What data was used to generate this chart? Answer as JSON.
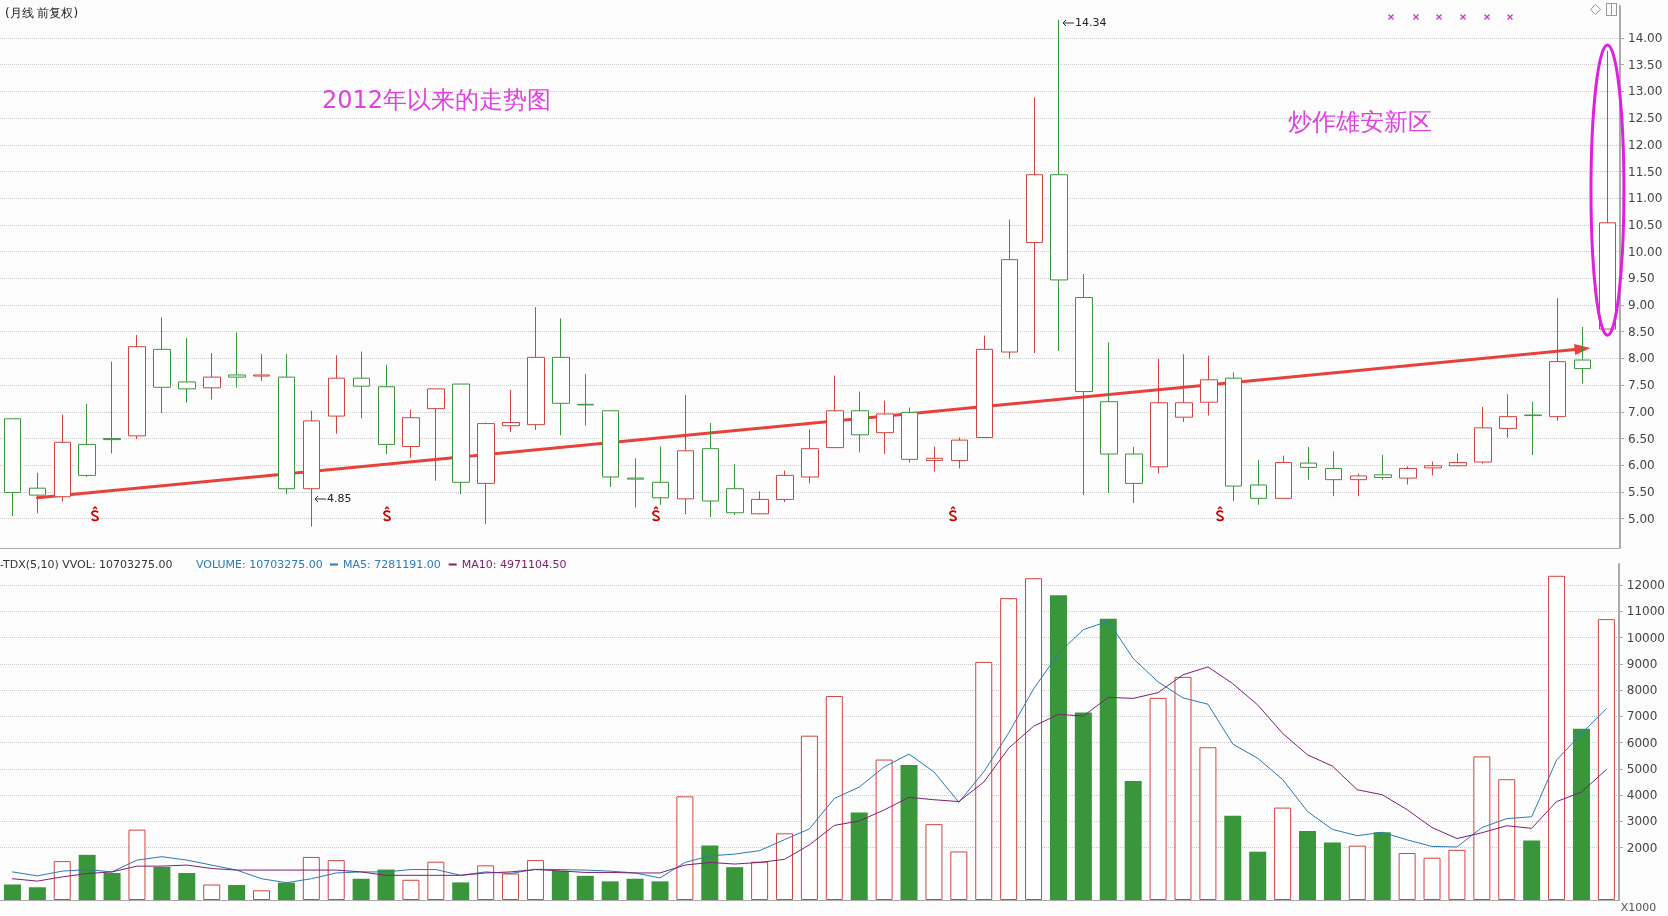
{
  "chart_data": [
    {
      "type": "candlestick",
      "title": "(月线 前复权)",
      "categories": [
        null,
        null,
        null,
        null,
        null,
        null,
        null,
        null,
        null,
        null,
        null,
        null,
        null,
        null,
        null,
        null,
        null,
        null,
        null,
        null,
        null,
        null,
        null,
        null,
        null,
        null,
        null,
        null,
        null,
        null,
        null,
        null,
        null,
        null,
        null,
        null,
        null,
        null,
        null,
        null,
        null,
        null,
        null,
        null,
        null,
        null,
        null,
        null,
        null,
        null,
        null,
        null,
        null,
        null,
        null,
        null,
        null,
        null,
        null,
        null,
        null,
        null,
        null,
        null,
        null
      ],
      "ohlc": [
        [
          6.87,
          6.87,
          5.05,
          5.49
        ],
        [
          5.57,
          5.86,
          5.1,
          5.44
        ],
        [
          5.41,
          6.95,
          5.32,
          6.43
        ],
        [
          6.39,
          7.15,
          5.78,
          5.81
        ],
        [
          6.5,
          7.94,
          6.22,
          6.48
        ],
        [
          6.55,
          8.44,
          6.49,
          8.22
        ],
        [
          8.17,
          8.77,
          6.98,
          7.46
        ],
        [
          7.56,
          8.38,
          7.17,
          7.43
        ],
        [
          7.45,
          8.1,
          7.23,
          7.65
        ],
        [
          7.69,
          8.49,
          7.45,
          7.65
        ],
        [
          7.67,
          8.08,
          7.58,
          7.69
        ],
        [
          7.65,
          8.08,
          5.46,
          5.56
        ],
        [
          5.56,
          7.02,
          4.85,
          6.83
        ],
        [
          6.92,
          8.06,
          6.59,
          7.63
        ],
        [
          7.63,
          8.13,
          6.88,
          7.48
        ],
        [
          7.47,
          7.88,
          6.21,
          6.39
        ],
        [
          6.35,
          7.04,
          6.14,
          6.89
        ],
        [
          7.06,
          7.43,
          5.71,
          7.43
        ],
        [
          7.52,
          7.52,
          5.46,
          5.68
        ],
        [
          5.66,
          6.8,
          4.9,
          6.78
        ],
        [
          6.74,
          7.41,
          6.62,
          6.8
        ],
        [
          6.76,
          8.96,
          6.66,
          8.02
        ],
        [
          8.02,
          8.75,
          6.56,
          7.16
        ],
        [
          7.14,
          7.71,
          6.74,
          7.13
        ],
        [
          7.02,
          7.02,
          5.59,
          5.78
        ],
        [
          5.76,
          6.13,
          5.21,
          5.74
        ],
        [
          5.68,
          6.35,
          5.26,
          5.39
        ],
        [
          5.37,
          7.32,
          5.08,
          6.27
        ],
        [
          6.31,
          6.79,
          5.03,
          5.33
        ],
        [
          5.56,
          6.02,
          5.07,
          5.11
        ],
        [
          5.09,
          5.51,
          5.08,
          5.36
        ],
        [
          5.36,
          5.9,
          5.31,
          5.81
        ],
        [
          5.78,
          6.67,
          5.66,
          6.31
        ],
        [
          6.33,
          7.68,
          6.32,
          7.02
        ],
        [
          7.02,
          7.38,
          6.24,
          6.57
        ],
        [
          6.61,
          7.21,
          6.21,
          6.96
        ],
        [
          6.99,
          7.08,
          6.05,
          6.11
        ],
        [
          6.09,
          6.35,
          5.88,
          6.13
        ],
        [
          6.09,
          6.52,
          5.94,
          6.47
        ],
        [
          6.52,
          8.43,
          6.51,
          8.17
        ],
        [
          8.12,
          10.6,
          8.0,
          9.85
        ],
        [
          10.17,
          12.89,
          8.1,
          11.44
        ],
        [
          11.44,
          14.34,
          8.14,
          9.47
        ],
        [
          9.14,
          9.58,
          5.44,
          7.38
        ],
        [
          7.19,
          8.3,
          5.48,
          6.21
        ],
        [
          6.21,
          6.34,
          5.29,
          5.66
        ],
        [
          5.97,
          7.99,
          5.85,
          7.17
        ],
        [
          6.9,
          8.08,
          6.81,
          7.17
        ],
        [
          7.18,
          8.05,
          6.93,
          7.6
        ],
        [
          7.63,
          7.74,
          5.33,
          5.61
        ],
        [
          5.63,
          6.1,
          5.26,
          5.38
        ],
        [
          5.38,
          6.18,
          5.38,
          6.05
        ],
        [
          6.04,
          6.34,
          5.73,
          5.96
        ],
        [
          5.94,
          6.26,
          5.42,
          5.73
        ],
        [
          5.73,
          5.84,
          5.42,
          5.8
        ],
        [
          5.82,
          6.19,
          5.73,
          5.77
        ],
        [
          5.76,
          5.98,
          5.64,
          5.94
        ],
        [
          5.95,
          6.07,
          5.81,
          5.99
        ],
        [
          5.99,
          6.22,
          5.98,
          6.05
        ],
        [
          6.06,
          7.09,
          6.03,
          6.7
        ],
        [
          6.69,
          7.33,
          6.51,
          6.91
        ],
        [
          6.94,
          7.19,
          6.19,
          6.93
        ],
        [
          6.91,
          9.13,
          6.83,
          7.94
        ],
        [
          7.97,
          8.59,
          7.53,
          7.81
        ],
        [
          8.55,
          13.76,
          8.55,
          10.54
        ]
      ],
      "colors": [
        "#3a963a",
        "#3a963a",
        "#d2453f",
        "#3a963a",
        "#3a963a",
        "#d2453f",
        "#3a963a",
        "#3a963a",
        "#d2453f",
        "#3a963a",
        "#d2453f",
        "#3a963a",
        "#d2453f",
        "#d2453f",
        "#3a963a",
        "#3a963a",
        "#d2453f",
        "#d2453f",
        "#3a963a",
        "#d2453f",
        "#d2453f",
        "#d2453f",
        "#3a963a",
        "#3a963a",
        "#3a963a",
        "#3a963a",
        "#3a963a",
        "#d2453f",
        "#3a963a",
        "#3a963a",
        "#d2453f",
        "#d2453f",
        "#d2453f",
        "#d2453f",
        "#3a963a",
        "#d2453f",
        "#3a963a",
        "#d2453f",
        "#d2453f",
        "#d2453f",
        "#d2453f",
        "#d2453f",
        "#3a963a",
        "#3a963a",
        "#3a963a",
        "#3a963a",
        "#d2453f",
        "#d2453f",
        "#d2453f",
        "#3a963a",
        "#3a963a",
        "#d2453f",
        "#3a963a",
        "#3a963a",
        "#d2453f",
        "#3a963a",
        "#d2453f",
        "#d2453f",
        "#d2453f",
        "#d2453f",
        "#d2453f",
        "#3a963a",
        "#d2453f",
        "#3a963a",
        "#d2453f"
      ],
      "series": [
        {
          "type": "line",
          "color": "#e8413c",
          "values": [
            null,
            5.39,
            null,
            null,
            null,
            null,
            null,
            null,
            null,
            null,
            null,
            null,
            null,
            null,
            null,
            null,
            null,
            null,
            null,
            null,
            null,
            null,
            null,
            null,
            null,
            null,
            null,
            null,
            null,
            null,
            null,
            null,
            null,
            null,
            null,
            null,
            null,
            null,
            null,
            null,
            null,
            null,
            null,
            null,
            null,
            null,
            null,
            null,
            null,
            null,
            null,
            null,
            null,
            null,
            null,
            null,
            null,
            null,
            null,
            null,
            null,
            null,
            null,
            8.18,
            null
          ]
        }
      ],
      "ylim": [
        4.45,
        14.6
      ],
      "yticks": [
        {
          "value": 5,
          "label": "5.00"
        },
        {
          "value": 5.5,
          "label": "5.50"
        },
        {
          "value": 6,
          "label": "6.00"
        },
        {
          "value": 6.5,
          "label": "6.50"
        },
        {
          "value": 7,
          "label": "7.00"
        },
        {
          "value": 7.5,
          "label": "7.50"
        },
        {
          "value": 8,
          "label": "8.00"
        },
        {
          "value": 8.5,
          "label": "8.50"
        },
        {
          "value": 9,
          "label": "9.00"
        },
        {
          "value": 9.5,
          "label": "9.50"
        },
        {
          "value": 10,
          "label": "10.00"
        },
        {
          "value": 10.5,
          "label": "10.50"
        },
        {
          "value": 11,
          "label": "11.00"
        },
        {
          "value": 11.5,
          "label": "11.50"
        },
        {
          "value": 12,
          "label": "12.00"
        },
        {
          "value": 12.5,
          "label": "12.50"
        },
        {
          "value": 13,
          "label": "13.00"
        },
        {
          "value": 13.5,
          "label": "13.50"
        },
        {
          "value": 14,
          "label": "14.00"
        }
      ],
      "grid": "y",
      "annotations": [
        "2012年以来的走势图",
        "炒作雄安新区",
        "14.34",
        "4.85"
      ]
    },
    {
      "type": "bar",
      "ylabel": "X1000",
      "categories": [
        null,
        null,
        null,
        null,
        null,
        null,
        null,
        null,
        null,
        null,
        null,
        null,
        null,
        null,
        null,
        null,
        null,
        null,
        null,
        null,
        null,
        null,
        null,
        null,
        null,
        null,
        null,
        null,
        null,
        null,
        null,
        null,
        null,
        null,
        null,
        null,
        null,
        null,
        null,
        null,
        null,
        null,
        null,
        null,
        null,
        null,
        null,
        null,
        null,
        null,
        null,
        null,
        null,
        null,
        null,
        null,
        null,
        null,
        null,
        null,
        null,
        null,
        null,
        null,
        null
      ],
      "series": [
        {
          "type": "bar",
          "values": [
            590,
            490,
            1480,
            1720,
            1030,
            2680,
            1260,
            1030,
            590,
            570,
            370,
            660,
            1640,
            1520,
            810,
            1160,
            770,
            1460,
            670,
            1320,
            1010,
            1520,
            1110,
            920,
            710,
            810,
            710,
            3950,
            2080,
            1250,
            1460,
            2540,
            6260,
            7770,
            3330,
            5350,
            5140,
            2890,
            1850,
            9070,
            11500,
            12260,
            11610,
            7140,
            10710,
            4530,
            7700,
            8500,
            5820,
            3210,
            1840,
            3520,
            2630,
            2190,
            2070,
            2580,
            1790,
            1610,
            1910,
            5470,
            4600,
            2270,
            12350,
            6520,
            10700
          ],
          "colors": [
            "#3a963a",
            "#3a963a",
            "#d2453f",
            "#3a963a",
            "#3a963a",
            "#d2453f",
            "#3a963a",
            "#3a963a",
            "#d2453f",
            "#3a963a",
            "#d2453f",
            "#3a963a",
            "#d2453f",
            "#d2453f",
            "#3a963a",
            "#3a963a",
            "#d2453f",
            "#d2453f",
            "#3a963a",
            "#d2453f",
            "#d2453f",
            "#d2453f",
            "#3a963a",
            "#3a963a",
            "#3a963a",
            "#3a963a",
            "#3a963a",
            "#d2453f",
            "#3a963a",
            "#3a963a",
            "#d2453f",
            "#d2453f",
            "#d2453f",
            "#d2453f",
            "#3a963a",
            "#d2453f",
            "#3a963a",
            "#d2453f",
            "#d2453f",
            "#d2453f",
            "#d2453f",
            "#d2453f",
            "#3a963a",
            "#3a963a",
            "#3a963a",
            "#3a963a",
            "#d2453f",
            "#d2453f",
            "#d2453f",
            "#3a963a",
            "#3a963a",
            "#d2453f",
            "#3a963a",
            "#3a963a",
            "#d2453f",
            "#3a963a",
            "#d2453f",
            "#d2453f",
            "#d2453f",
            "#d2453f",
            "#d2453f",
            "#3a963a",
            "#d2453f",
            "#3a963a",
            "#d2453f"
          ]
        },
        {
          "type": "line",
          "name": "MA5: 7281191.00",
          "color": "#2a7ab8",
          "values": [
            1070,
            920,
            1100,
            1160,
            1070,
            1520,
            1650,
            1520,
            1330,
            1140,
            810,
            660,
            810,
            1030,
            1070,
            1070,
            1160,
            1160,
            940,
            1070,
            1010,
            1170,
            1160,
            1140,
            1100,
            1030,
            840,
            1430,
            1680,
            1750,
            1880,
            2300,
            2710,
            3870,
            4300,
            5070,
            5560,
            4880,
            3720,
            4880,
            6360,
            8040,
            9390,
            10300,
            10620,
            9200,
            8310,
            7700,
            7460,
            5940,
            5400,
            4590,
            3370,
            2690,
            2450,
            2580,
            2290,
            2040,
            2020,
            2760,
            3100,
            3170,
            5330,
            6340,
            7280
          ]
        },
        {
          "type": "line",
          "name": "MA10: 4971104.50",
          "color": "#7b2170",
          "values": [
            810,
            720,
            880,
            1010,
            1070,
            1290,
            1290,
            1330,
            1200,
            1140,
            1140,
            1140,
            1140,
            1140,
            1070,
            940,
            940,
            940,
            940,
            1030,
            1070,
            1160,
            1110,
            1050,
            1050,
            1030,
            1030,
            1330,
            1430,
            1370,
            1430,
            1550,
            2100,
            2840,
            3010,
            3430,
            3910,
            3820,
            3750,
            4490,
            5780,
            6620,
            7070,
            7010,
            7720,
            7680,
            7900,
            8580,
            8880,
            8240,
            7430,
            6350,
            5530,
            5100,
            4200,
            4010,
            3440,
            2760,
            2340,
            2560,
            2830,
            2730,
            3750,
            4110,
            4970
          ]
        }
      ],
      "ylim": [
        0,
        12800
      ],
      "yticks": [
        2000,
        3000,
        4000,
        5000,
        6000,
        7000,
        8000,
        9000,
        10000,
        11000,
        12000
      ],
      "grid": "y",
      "legend": "top left",
      "annotations": [
        "-TDX(5,10) VVOL: 10703275.00",
        "VOLUME: 10703275.00"
      ]
    }
  ]
}
